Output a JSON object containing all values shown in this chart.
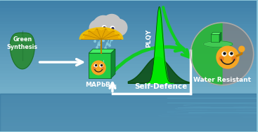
{
  "bg_top": "#8ac4d8",
  "bg_bottom": "#4a8fb5",
  "water_color": "#3d7fa8",
  "leaf_color": "#2d8a3e",
  "leaf_dark": "#1a6b2a",
  "cloud_color": "#c5c5c5",
  "umbrella_color": "#e6a800",
  "umbrella_dark": "#b87f00",
  "cube_front": "#22cc44",
  "cube_top": "#44ee66",
  "cube_right": "#118833",
  "cube_edge": "#0d6622",
  "arrow_white": "#ffffff",
  "arrow_green": "#11cc22",
  "peak_bright": "#00ee00",
  "peak_dark_fill": "#007700",
  "sphere_gray": "#909090",
  "sphere_green": "#22aa33",
  "plat_green": "#55dd55",
  "mini_cube_color": "#33cc55",
  "emoji_body": "#f5a623",
  "emoji_dark": "#c07800",
  "rain_color": "#88ccdd",
  "green_synthesis_text": "Green\nSynthesis",
  "plqy_text": "PLQY",
  "water_resistant_text": "Water Resistant",
  "self_defence_text": "Self-Defence",
  "mapbbr3_text": "MAPbBr$_3$"
}
